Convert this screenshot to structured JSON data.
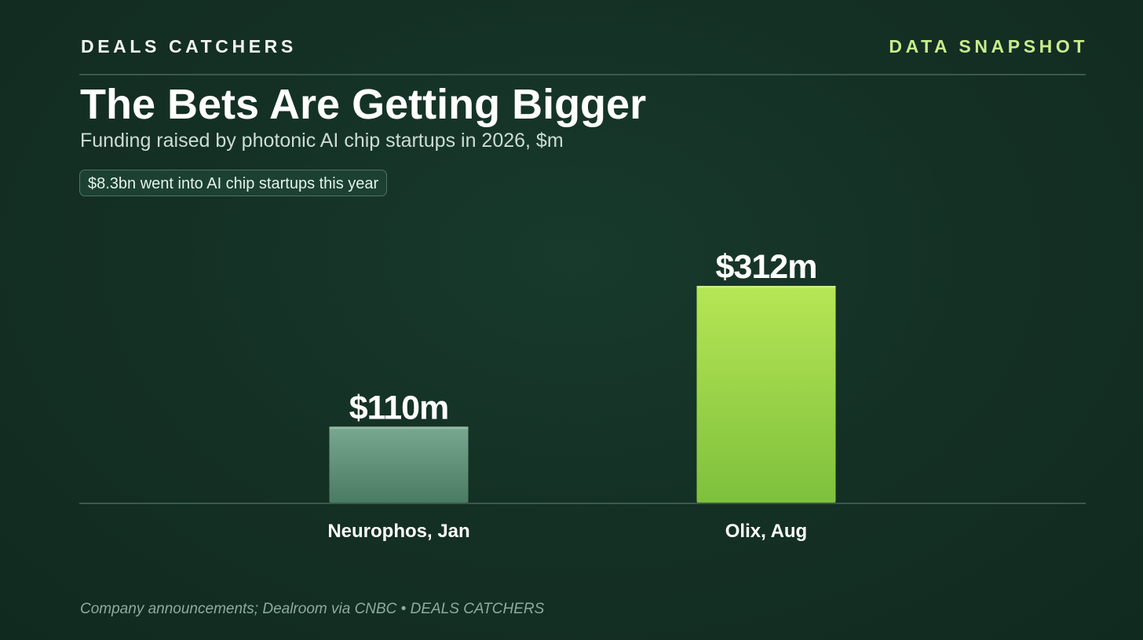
{
  "header": {
    "brand": "DEALS CATCHERS",
    "tag": "DATA SNAPSHOT"
  },
  "title": "The Bets Are Getting Bigger",
  "subtitle": "Funding raised by photonic AI chip startups in 2026, $m",
  "callout": "$8.3bn went into AI chip startups this year",
  "source": "Company announcements; Dealroom via CNBC • DEALS CATCHERS",
  "colors": {
    "background": "#132c22",
    "accent": "#c8ec8c",
    "bar_muted": "#5e927a",
    "bar_highlight": "#9ed64a"
  },
  "chart_data": {
    "type": "bar",
    "title": "The Bets Are Getting Bigger",
    "subtitle": "Funding raised by photonic AI chip startups in 2026, $m",
    "categories": [
      "Neurophos, Jan",
      "Olix, Aug"
    ],
    "values": [
      110,
      312
    ],
    "value_labels": [
      "$110m",
      "$312m"
    ],
    "unit": "$m",
    "ylim": [
      0,
      312
    ],
    "grid": false,
    "legend": "none",
    "highlighted_category": "Olix, Aug"
  }
}
